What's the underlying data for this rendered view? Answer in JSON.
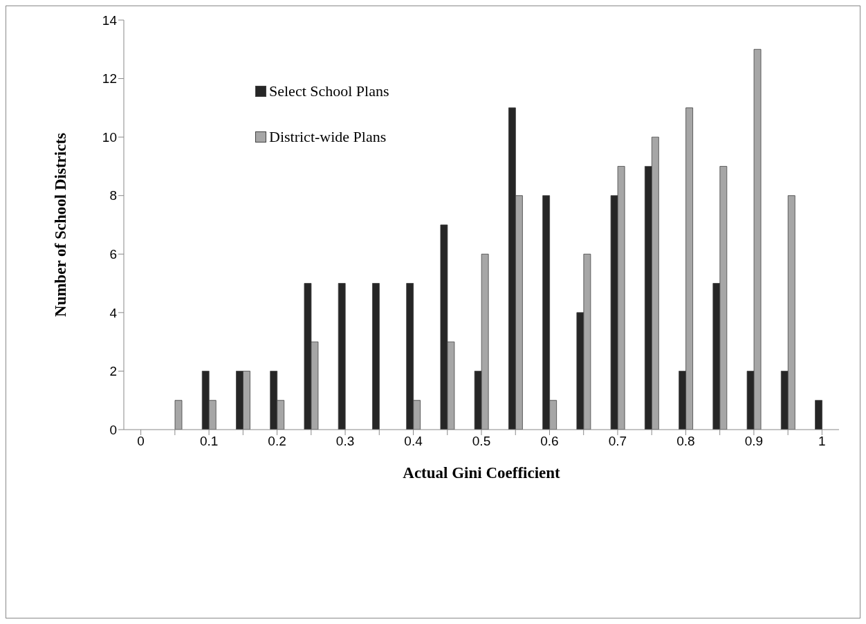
{
  "chart_data": {
    "type": "bar",
    "xlabel": "Actual Gini Coefficient",
    "ylabel": "Number of School Districts",
    "categories": [
      "0",
      null,
      "0.1",
      null,
      "0.2",
      null,
      "0.3",
      null,
      "0.4",
      null,
      "0.5",
      null,
      "0.6",
      null,
      "0.7",
      null,
      "0.8",
      null,
      "0.9",
      null,
      "1"
    ],
    "series": [
      {
        "name": "Select School Plans",
        "color": "#262626",
        "values": [
          0,
          0,
          2,
          2,
          2,
          5,
          5,
          5,
          5,
          7,
          2,
          11,
          8,
          4,
          8,
          9,
          2,
          5,
          2,
          2,
          1
        ]
      },
      {
        "name": "District-wide Plans",
        "color": "#a6a6a6",
        "values": [
          0,
          1,
          1,
          2,
          1,
          3,
          0,
          0,
          1,
          3,
          6,
          8,
          1,
          6,
          9,
          10,
          11,
          9,
          13,
          8,
          0
        ]
      }
    ],
    "ylim": [
      0,
      14
    ],
    "yticks": [
      0,
      2,
      4,
      6,
      8,
      10,
      12,
      14
    ],
    "grid": false,
    "legend": "top left"
  }
}
